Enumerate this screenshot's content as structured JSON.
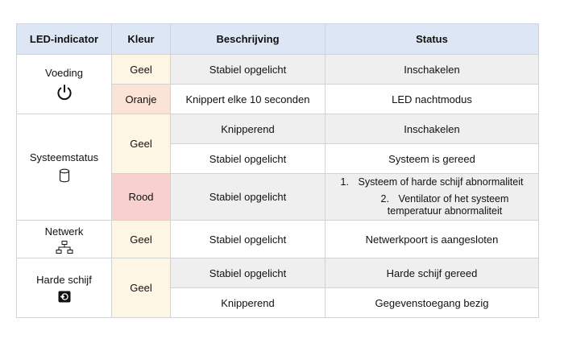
{
  "headers": {
    "indicator": "LED-indicator",
    "color": "Kleur",
    "description": "Beschrijving",
    "status": "Status"
  },
  "indicators": {
    "power": {
      "label": "Voeding",
      "icon": "power-icon"
    },
    "system_status": {
      "label": "Systeemstatus",
      "icon": "database-icon"
    },
    "network": {
      "label": "Netwerk",
      "icon": "network-icon"
    },
    "hard_drive": {
      "label": "Harde schijf",
      "icon": "hard-drive-icon"
    }
  },
  "colors": {
    "geel": "Geel",
    "oranje": "Oranje",
    "rood": "Rood",
    "geel_hex": "#fdf6e3",
    "oranje_hex": "#fbe3d6",
    "rood_hex": "#f8d0d0",
    "header_hex": "#dde6f4"
  },
  "rows": {
    "power_1": {
      "description": "Stabiel opgelicht",
      "status": "Inschakelen"
    },
    "power_2": {
      "description": "Knippert elke 10 seconden",
      "status": "LED nachtmodus"
    },
    "system_1": {
      "description": "Knipperend",
      "status": "Inschakelen"
    },
    "system_2": {
      "description": "Stabiel opgelicht",
      "status": "Systeem is gereed"
    },
    "system_3": {
      "description": "Stabiel opgelicht",
      "status_items": [
        {
          "num": "1.",
          "text": "Systeem of harde schijf abnormaliteit"
        },
        {
          "num": "2.",
          "text_line1": "Ventilator of het systeem",
          "text_line2": "temperatuur abnormaliteit"
        }
      ]
    },
    "network_1": {
      "description": "Stabiel opgelicht",
      "status": "Netwerkpoort is aangesloten"
    },
    "drive_1": {
      "description": "Stabiel opgelicht",
      "status": "Harde schijf gereed"
    },
    "drive_2": {
      "description": "Knipperend",
      "status": "Gegevenstoegang bezig"
    }
  }
}
